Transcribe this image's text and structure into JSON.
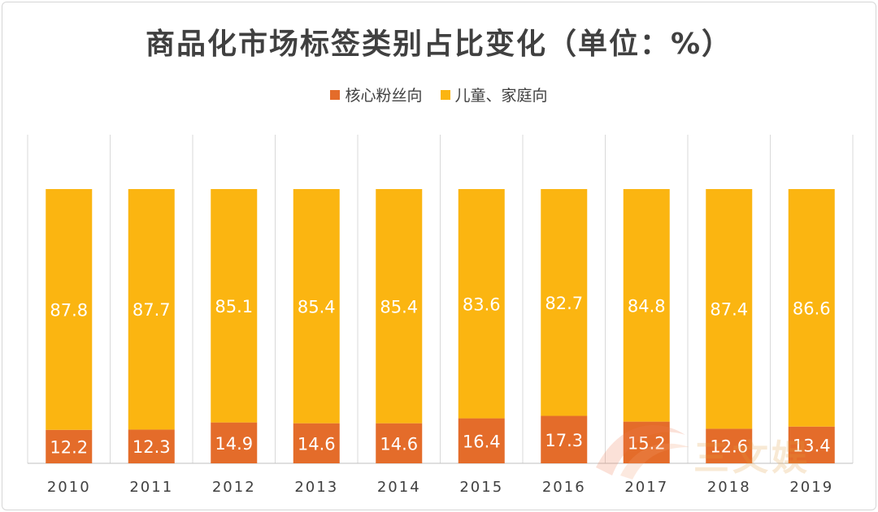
{
  "chart_data": {
    "type": "bar",
    "stacked": true,
    "title": "商品化市场标签类别占比变化（单位：%）",
    "categories": [
      "2010",
      "2011",
      "2012",
      "2013",
      "2014",
      "2015",
      "2016",
      "2017",
      "2018",
      "2019"
    ],
    "series": [
      {
        "name": "核心粉丝向",
        "color": "#e46c2a",
        "values": [
          12.2,
          12.3,
          14.9,
          14.6,
          14.6,
          16.4,
          17.3,
          15.2,
          12.6,
          13.4
        ]
      },
      {
        "name": "儿童、家庭向",
        "color": "#fbb511",
        "values": [
          87.8,
          87.7,
          85.1,
          85.4,
          85.4,
          83.6,
          82.7,
          84.8,
          87.4,
          86.6
        ]
      }
    ],
    "ylim": [
      0,
      100
    ],
    "grid": "vertical",
    "legend": "top-center",
    "data_labels": true
  },
  "watermark": {
    "text": "三文娱"
  }
}
